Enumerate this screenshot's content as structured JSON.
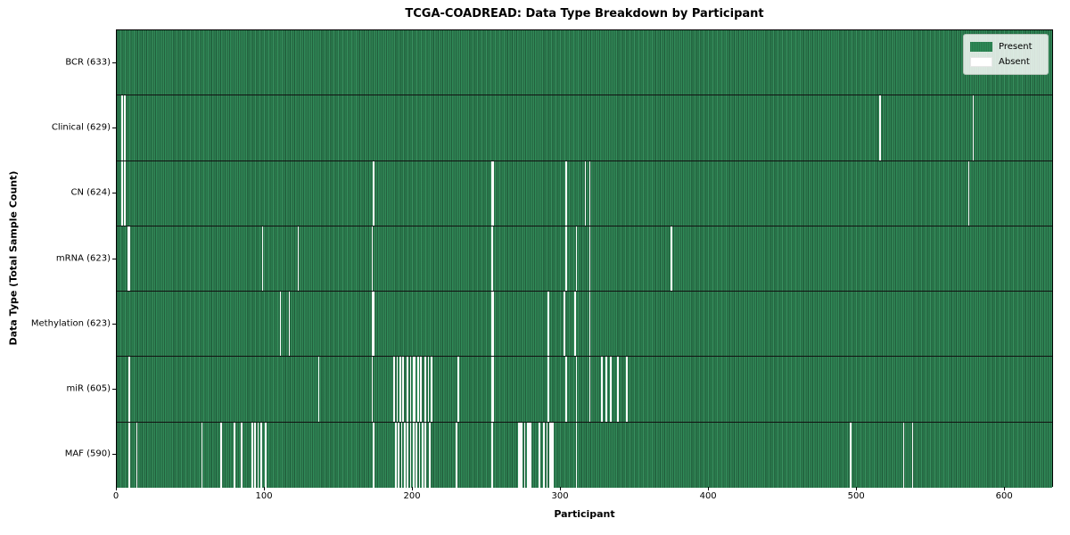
{
  "title": "TCGA-COADREAD: Data Type Breakdown by Participant",
  "chart_data": {
    "type": "heatmap",
    "title": "TCGA-COADREAD: Data Type Breakdown by Participant",
    "xlabel": "Participant",
    "ylabel": "Data Type (Total Sample Count)",
    "x_ticks": [
      0,
      100,
      200,
      300,
      400,
      500,
      600
    ],
    "xlim": [
      0,
      633
    ],
    "n_participants": 633,
    "grid": false,
    "legend_position": "upper right",
    "colors": {
      "present": "#2e8b57",
      "absent": "#fbfbfb",
      "row_divider": "#111111",
      "legend_border": "#b7c4ba"
    },
    "legend": [
      {
        "label": "Present",
        "color": "#2e8b57"
      },
      {
        "label": "Absent",
        "color": "#ffffff"
      }
    ],
    "rows": [
      {
        "label": "BCR (633)",
        "name": "BCR",
        "total_samples": 633,
        "absent_participants": []
      },
      {
        "label": "Clinical (629)",
        "name": "Clinical",
        "total_samples": 629,
        "absent_participants": [
          3,
          5,
          515,
          578
        ]
      },
      {
        "label": "CN (624)",
        "name": "CN",
        "total_samples": 624,
        "absent_participants": [
          3,
          5,
          173,
          253,
          254,
          303,
          316,
          319,
          575
        ]
      },
      {
        "label": "mRNA (623)",
        "name": "mRNA",
        "total_samples": 623,
        "absent_participants": [
          7,
          8,
          98,
          122,
          172,
          253,
          303,
          310,
          319,
          374
        ]
      },
      {
        "label": "Methylation (623)",
        "name": "Methylation",
        "total_samples": 623,
        "absent_participants": [
          110,
          116,
          172,
          173,
          253,
          254,
          291,
          302,
          309,
          319
        ]
      },
      {
        "label": "miR (605)",
        "name": "miR",
        "total_samples": 605,
        "absent_participants": [
          8,
          136,
          172,
          187,
          189,
          191,
          193,
          196,
          198,
          200,
          201,
          203,
          205,
          208,
          210,
          212,
          230,
          253,
          254,
          291,
          303,
          310,
          319,
          327,
          330,
          333,
          338,
          344
        ]
      },
      {
        "label": "MAF (590)",
        "name": "MAF",
        "total_samples": 590,
        "absent_participants": [
          8,
          13,
          57,
          70,
          79,
          84,
          91,
          93,
          95,
          97,
          100,
          173,
          188,
          190,
          192,
          194,
          196,
          198,
          200,
          202,
          204,
          206,
          208,
          211,
          229,
          253,
          271,
          272,
          273,
          275,
          277,
          278,
          279,
          285,
          288,
          290,
          292,
          293,
          294,
          310,
          495,
          531,
          537
        ]
      }
    ]
  }
}
